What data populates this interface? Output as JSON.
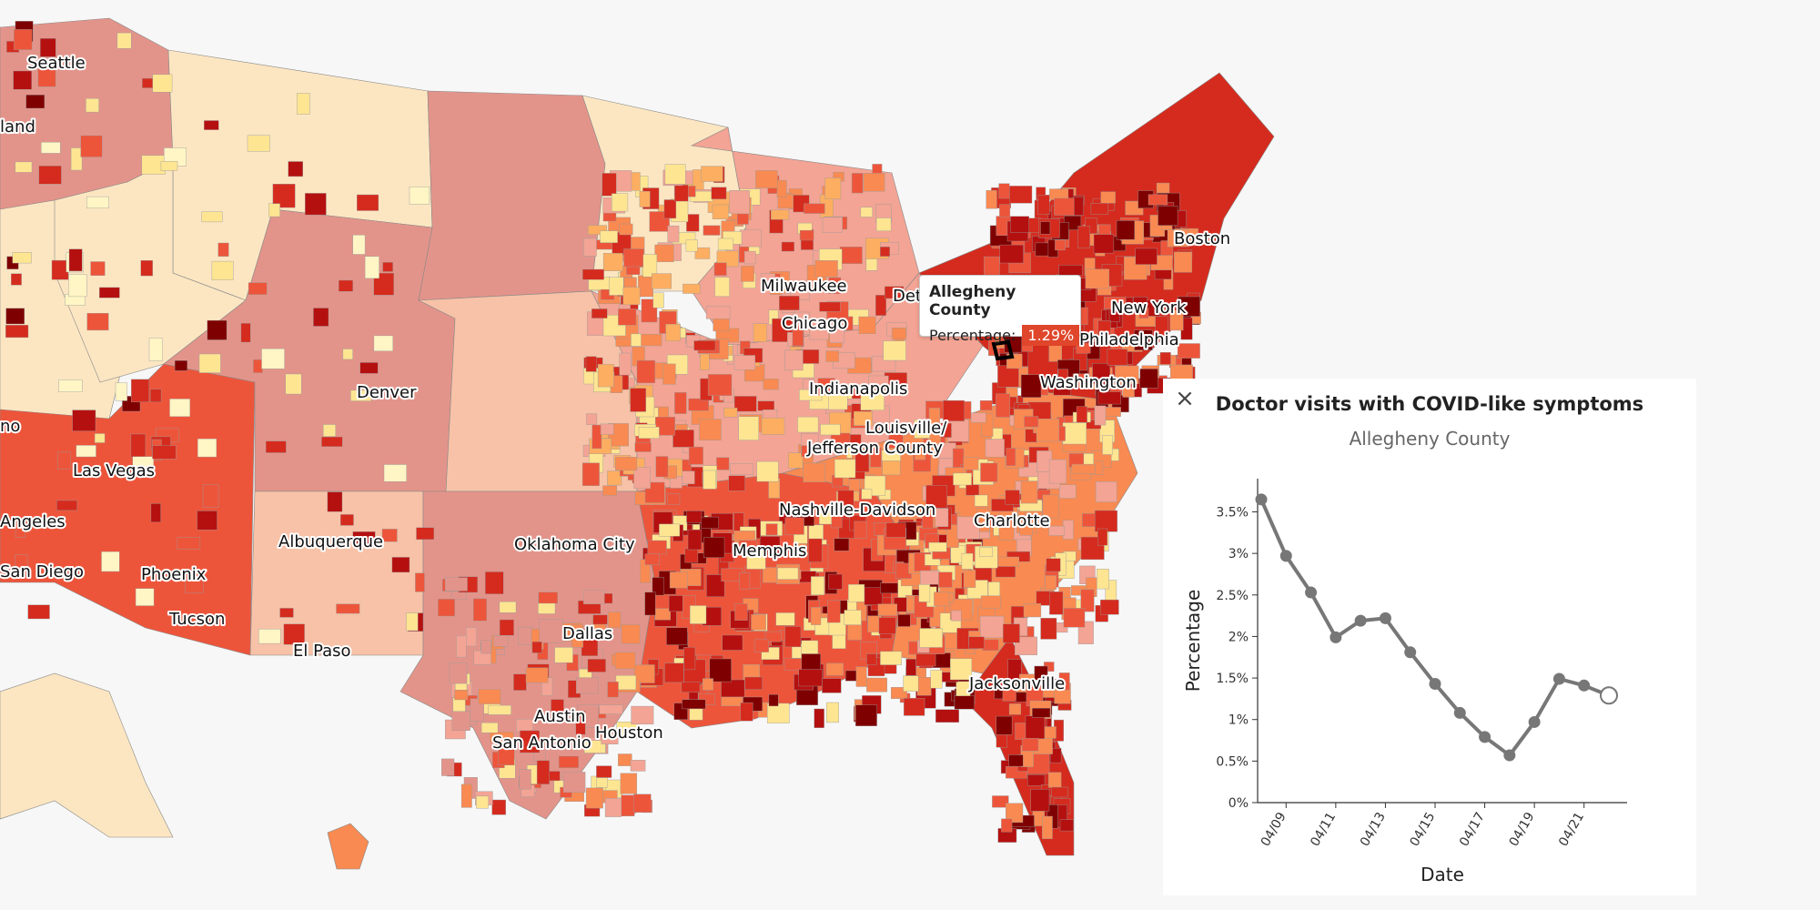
{
  "map": {
    "cities": [
      {
        "name": "Seattle",
        "x": 30,
        "y": 75
      },
      {
        "name": "land",
        "x": 0,
        "y": 145
      },
      {
        "name": "no",
        "x": 0,
        "y": 474
      },
      {
        "name": "Las Vegas",
        "x": 80,
        "y": 523
      },
      {
        "name": "Angeles",
        "x": 0,
        "y": 579
      },
      {
        "name": "San Diego",
        "x": 0,
        "y": 634
      },
      {
        "name": "Phoenix",
        "x": 155,
        "y": 637
      },
      {
        "name": "Tucson",
        "x": 186,
        "y": 686
      },
      {
        "name": "Albuquerque",
        "x": 306,
        "y": 601
      },
      {
        "name": "El Paso",
        "x": 322,
        "y": 721
      },
      {
        "name": "Denver",
        "x": 392,
        "y": 437
      },
      {
        "name": "Milwaukee",
        "x": 836,
        "y": 320
      },
      {
        "name": "Chicago",
        "x": 859,
        "y": 361
      },
      {
        "name": "Det",
        "x": 981,
        "y": 331
      },
      {
        "name": "Indianapolis",
        "x": 889,
        "y": 433
      },
      {
        "name": "Louisville/",
        "x": 951,
        "y": 476
      },
      {
        "name": "Jefferson County",
        "x": 887,
        "y": 498
      },
      {
        "name": "Nashville-Davidson",
        "x": 856,
        "y": 566
      },
      {
        "name": "Oklahoma City",
        "x": 565,
        "y": 604
      },
      {
        "name": "Memphis",
        "x": 805,
        "y": 611
      },
      {
        "name": "Dallas",
        "x": 618,
        "y": 702
      },
      {
        "name": "Austin",
        "x": 587,
        "y": 793
      },
      {
        "name": "Houston",
        "x": 654,
        "y": 811
      },
      {
        "name": "San Antonio",
        "x": 541,
        "y": 822
      },
      {
        "name": "Charlotte",
        "x": 1070,
        "y": 578
      },
      {
        "name": "Jacksonville",
        "x": 1065,
        "y": 757
      },
      {
        "name": "Boston",
        "x": 1290,
        "y": 268
      },
      {
        "name": "New York",
        "x": 1221,
        "y": 344
      },
      {
        "name": "Philadelphia",
        "x": 1186,
        "y": 379
      },
      {
        "name": "Washington",
        "x": 1143,
        "y": 426
      }
    ],
    "colors": [
      "#fff5c5",
      "#fee592",
      "#fdae61",
      "#f88a52",
      "#ed553b",
      "#d52b1e",
      "#b51010",
      "#7f0000",
      "#f3a494",
      "#f7c2a7",
      "#fce6c2",
      "#e3948a"
    ]
  },
  "tooltip": {
    "title": "Allegheny County",
    "label": "Percentage:",
    "value": "1.29%",
    "value_color": "#e0462b"
  },
  "panel": {
    "close_icon": "close-icon",
    "title": "Doctor visits with COVID-like symptoms",
    "subtitle": "Allegheny County"
  },
  "chart_data": {
    "type": "line",
    "xlabel": "Date",
    "ylabel": "Percentage",
    "x": [
      "04/08",
      "04/09",
      "04/10",
      "04/11",
      "04/12",
      "04/13",
      "04/14",
      "04/15",
      "04/16",
      "04/17",
      "04/18",
      "04/19",
      "04/20",
      "04/21",
      "04/22"
    ],
    "values": [
      3.65,
      2.97,
      2.53,
      1.99,
      2.19,
      2.22,
      1.81,
      1.43,
      1.08,
      0.79,
      0.57,
      0.97,
      1.49,
      1.41,
      1.29
    ],
    "xticks": [
      "04/09",
      "04/11",
      "04/13",
      "04/15",
      "04/17",
      "04/19",
      "04/21"
    ],
    "yticks": [
      "0%",
      "0.5%",
      "1%",
      "1.5%",
      "2%",
      "2.5%",
      "3%",
      "3.5%"
    ],
    "ylim": [
      0,
      3.9
    ],
    "grid": false,
    "line_color": "#777777",
    "highlight_last_point": true
  }
}
